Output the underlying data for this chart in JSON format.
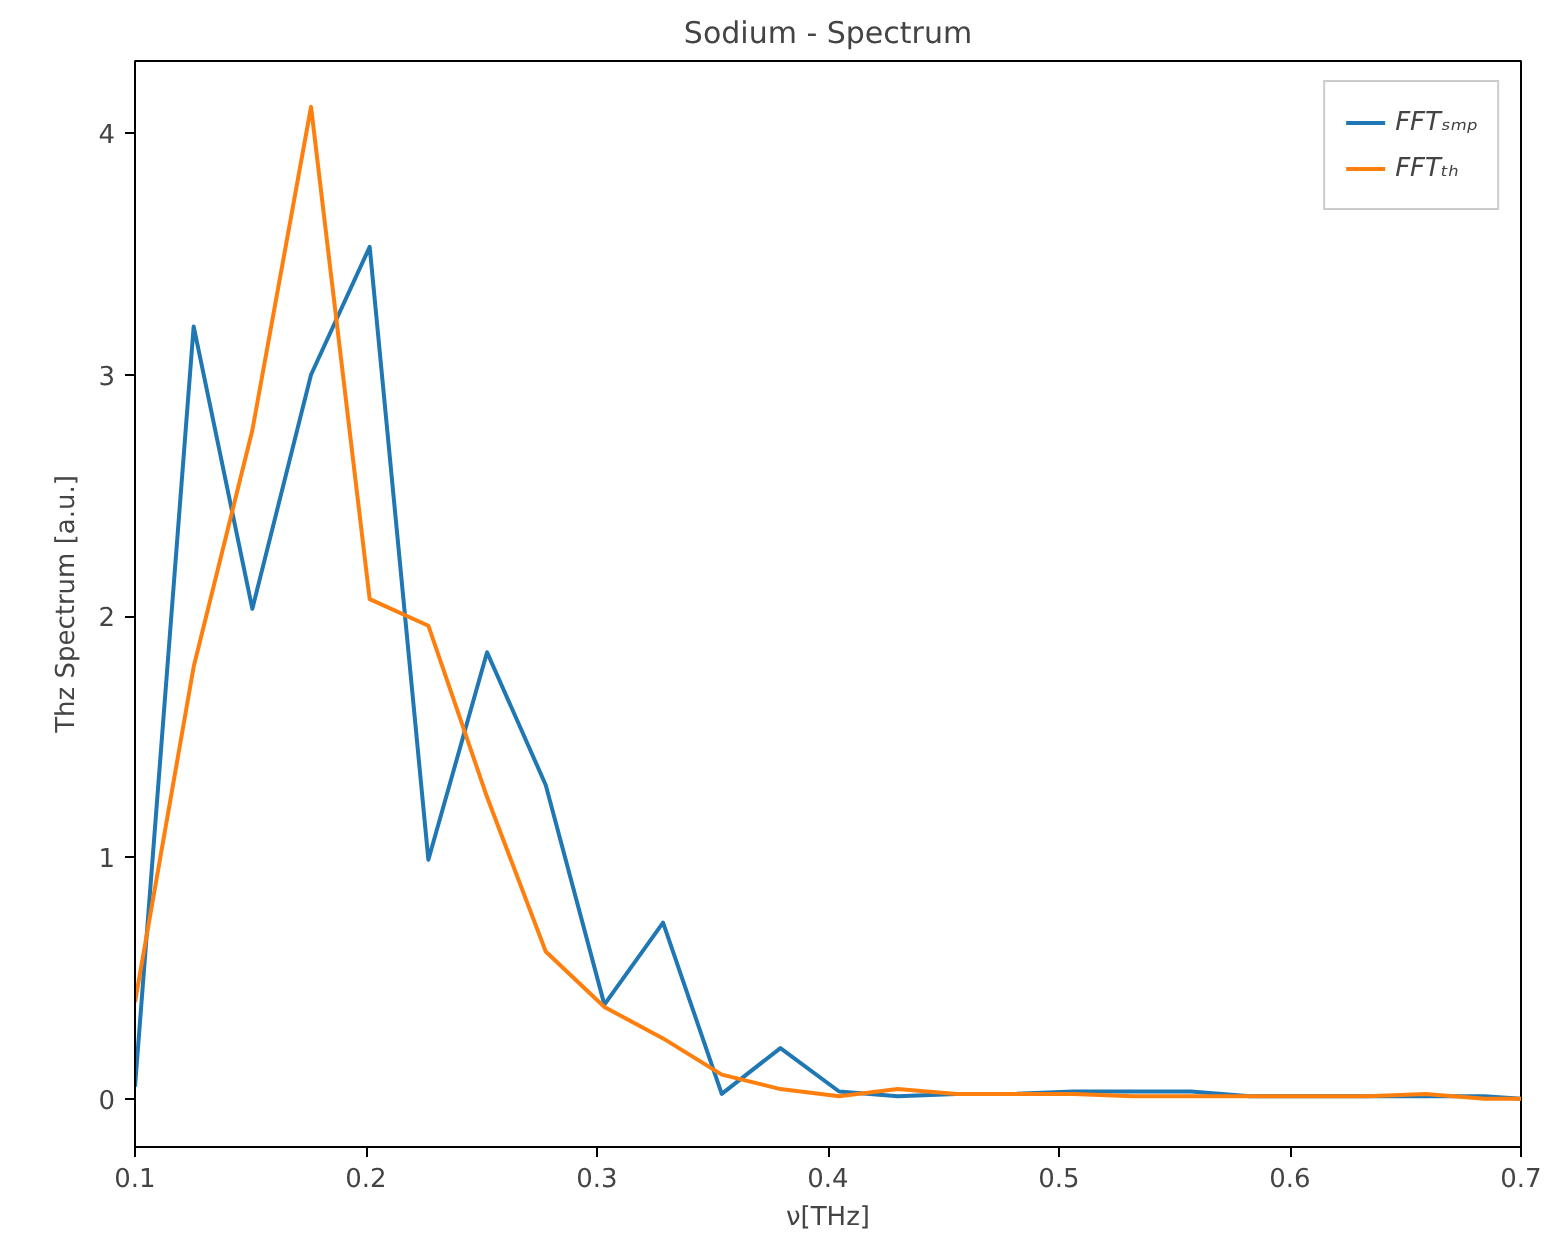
{
  "chart_data": {
    "type": "line",
    "title": "Sodium - Spectrum",
    "xlabel": "ν[THz]",
    "ylabel": "Thz Spectrum [a.u.]",
    "x": [
      0.1,
      0.1254,
      0.1508,
      0.1762,
      0.2016,
      0.227,
      0.2524,
      0.2778,
      0.3032,
      0.3286,
      0.354,
      0.3794,
      0.4048,
      0.4302,
      0.4556,
      0.481,
      0.5064,
      0.5318,
      0.5572,
      0.5826,
      0.608,
      0.6334,
      0.6588,
      0.6842,
      0.7
    ],
    "series": [
      {
        "name": "FFTₛₘₚ",
        "color": "#1f77b4",
        "values": [
          0.05,
          3.2,
          2.03,
          3.0,
          3.53,
          0.99,
          1.85,
          1.3,
          0.39,
          0.73,
          0.02,
          0.21,
          0.03,
          0.01,
          0.02,
          0.02,
          0.03,
          0.03,
          0.03,
          0.01,
          0.01,
          0.01,
          0.01,
          0.01,
          0.0
        ]
      },
      {
        "name": "FFTₜₕ",
        "color": "#ff7f0e",
        "values": [
          0.4,
          1.79,
          2.77,
          4.11,
          2.07,
          1.96,
          1.25,
          0.61,
          0.38,
          0.25,
          0.1,
          0.04,
          0.01,
          0.04,
          0.02,
          0.02,
          0.02,
          0.01,
          0.01,
          0.01,
          0.01,
          0.01,
          0.02,
          0.0,
          0.0
        ]
      }
    ],
    "xlim": [
      0.1,
      0.7
    ],
    "xticks": [
      0.1,
      0.2,
      0.3,
      0.4,
      0.5,
      0.6,
      0.7
    ],
    "ylim": [
      -0.2,
      4.3
    ],
    "yticks": [
      0,
      1,
      2,
      3,
      4
    ],
    "grid": false,
    "legend": "top right",
    "marker": "none",
    "line_style": "solid"
  }
}
